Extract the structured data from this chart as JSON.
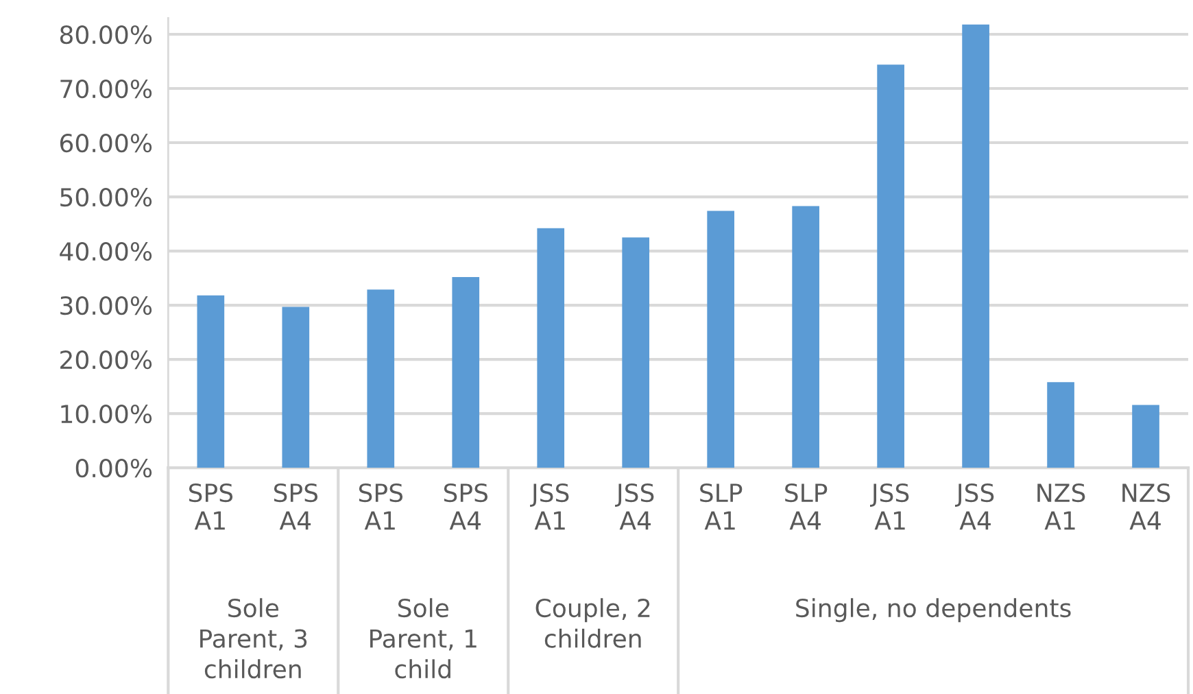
{
  "chart_data": {
    "type": "bar",
    "categories": [
      "SPS\nA1",
      "SPS\nA4",
      "SPS\nA1",
      "SPS\nA4",
      "JSS\nA1",
      "JSS\nA4",
      "SLP\nA1",
      "SLP\nA4",
      "JSS\nA1",
      "JSS\nA4",
      "NZS\nA1",
      "NZS\nA4"
    ],
    "values": [
      31.8,
      29.7,
      32.9,
      35.2,
      44.2,
      42.5,
      47.4,
      48.3,
      74.4,
      81.8,
      15.8,
      11.6
    ],
    "color": "#5b9bd5",
    "ylim": [
      0,
      83
    ],
    "yticks": [
      {
        "value": 0,
        "label": "0.00%"
      },
      {
        "value": 10,
        "label": "10.00%"
      },
      {
        "value": 20,
        "label": "20.00%"
      },
      {
        "value": 30,
        "label": "30.00%"
      },
      {
        "value": 40,
        "label": "40.00%"
      },
      {
        "value": 50,
        "label": "50.00%"
      },
      {
        "value": 60,
        "label": "60.00%"
      },
      {
        "value": 70,
        "label": "70.00%"
      },
      {
        "value": 80,
        "label": "80.00%"
      }
    ],
    "grid": "y",
    "annotations": [
      "Sole\nParent, 3\nchildren",
      "Sole\nParent, 1\nchild",
      "Couple, 2\nchildren",
      "Single, no dependents"
    ]
  }
}
